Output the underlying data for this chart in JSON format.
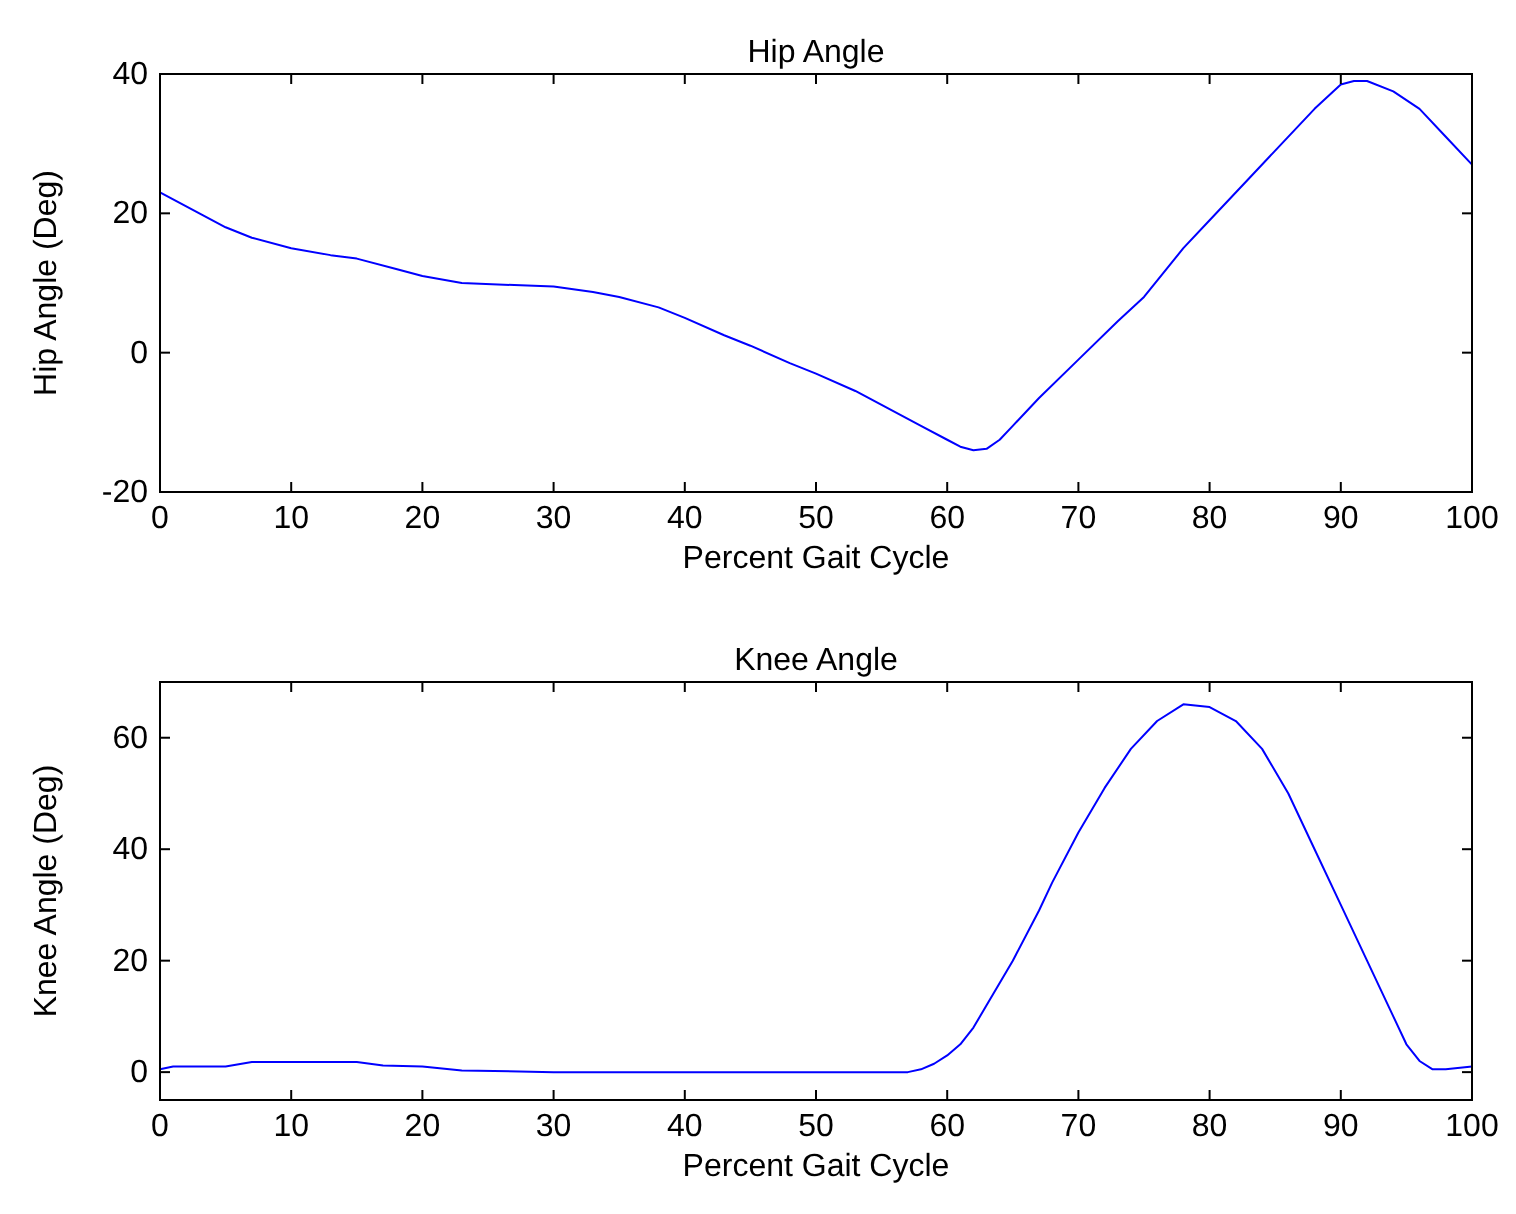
{
  "chart_data": [
    {
      "type": "line",
      "title": "Hip Angle",
      "xlabel": "Percent Gait Cycle",
      "ylabel": "Hip Angle (Deg)",
      "xlim": [
        0,
        100
      ],
      "xticks": [
        0,
        10,
        20,
        30,
        40,
        50,
        60,
        70,
        80,
        90,
        100
      ],
      "ylim": [
        -20,
        40
      ],
      "yticks": [
        -20,
        0,
        20,
        40
      ],
      "series": [
        {
          "color": "#0000ff",
          "x": [
            0,
            3,
            5,
            7,
            10,
            13,
            15,
            18,
            20,
            23,
            27,
            30,
            33,
            35,
            38,
            40,
            43,
            45,
            48,
            50,
            53,
            55,
            58,
            60,
            61,
            62,
            63,
            64,
            65,
            67,
            70,
            73,
            75,
            78,
            80,
            83,
            85,
            88,
            90,
            91,
            92,
            94,
            96,
            98,
            100
          ],
          "values": [
            23,
            20,
            18,
            16.5,
            15,
            14,
            13.5,
            12,
            11,
            10,
            9.7,
            9.5,
            8.7,
            8,
            6.5,
            5,
            2.5,
            1,
            -1.5,
            -3,
            -5.5,
            -7.5,
            -10.5,
            -12.5,
            -13.5,
            -14,
            -13.8,
            -12.5,
            -10.5,
            -6.5,
            -1,
            4.5,
            8,
            15,
            19,
            25,
            29,
            35,
            38.5,
            39,
            39,
            37.5,
            35,
            31,
            27
          ]
        }
      ]
    },
    {
      "type": "line",
      "title": "Knee Angle",
      "xlabel": "Percent Gait Cycle",
      "ylabel": "Knee Angle (Deg)",
      "xlim": [
        0,
        100
      ],
      "xticks": [
        0,
        10,
        20,
        30,
        40,
        50,
        60,
        70,
        80,
        90,
        100
      ],
      "ylim": [
        -5,
        70
      ],
      "yticks": [
        0,
        20,
        40,
        60
      ],
      "series": [
        {
          "color": "#0000ff",
          "x": [
            0,
            1,
            5,
            7,
            10,
            15,
            17,
            20,
            23,
            30,
            40,
            50,
            57,
            58,
            59,
            60,
            61,
            62,
            63,
            65,
            67,
            68,
            70,
            72,
            74,
            76,
            78,
            80,
            82,
            84,
            86,
            88,
            90,
            92,
            94,
            95,
            96,
            97,
            98,
            100
          ],
          "values": [
            0.5,
            1,
            1,
            1.8,
            1.8,
            1.8,
            1.2,
            1,
            0.3,
            0,
            0,
            0,
            0,
            0.5,
            1.5,
            3,
            5,
            8,
            12,
            20,
            29,
            34,
            43,
            51,
            58,
            63,
            66,
            65.5,
            63,
            58,
            50,
            40,
            30,
            20,
            10,
            5,
            2,
            0.5,
            0.5,
            1
          ]
        }
      ]
    }
  ]
}
